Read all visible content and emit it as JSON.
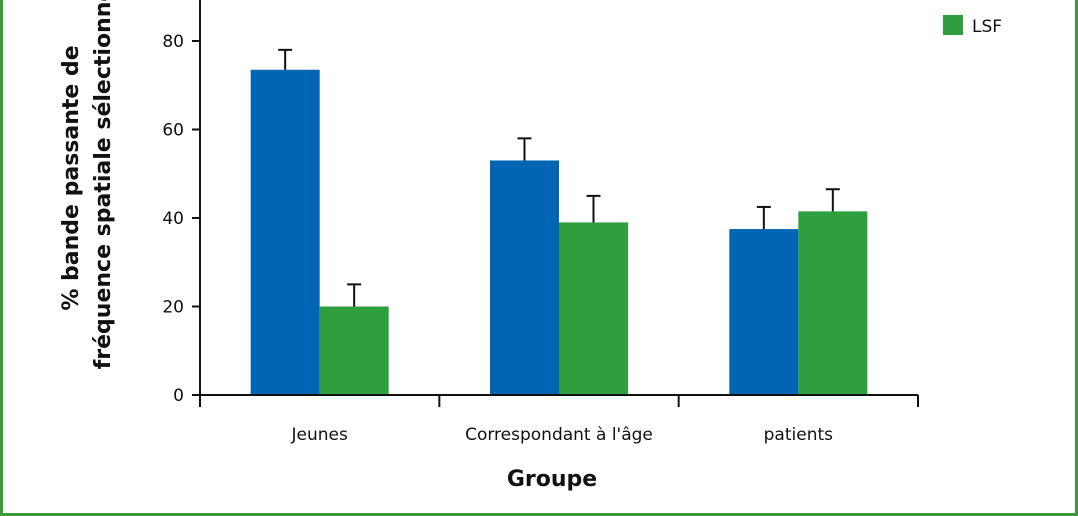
{
  "chart_data": {
    "type": "bar",
    "categories": [
      "Jeunes",
      "Correspondant à l'âge",
      "patients"
    ],
    "series": [
      {
        "color": "#0066b3",
        "values": [
          73.5,
          53,
          37.5
        ],
        "errors": [
          4.5,
          5,
          5
        ]
      },
      {
        "name": "LSF",
        "color": "#2e9e3e",
        "values": [
          20,
          39,
          41.5
        ],
        "errors": [
          5,
          6,
          5
        ]
      }
    ],
    "xlabel": "Groupe",
    "ylabel_line1": "% bande passante de",
    "ylabel_line2": "fréquence spatiale sélectionné",
    "yticks": [
      0,
      20,
      40,
      60,
      80
    ],
    "ylim": [
      0,
      90
    ],
    "legend_position": "top-right"
  }
}
